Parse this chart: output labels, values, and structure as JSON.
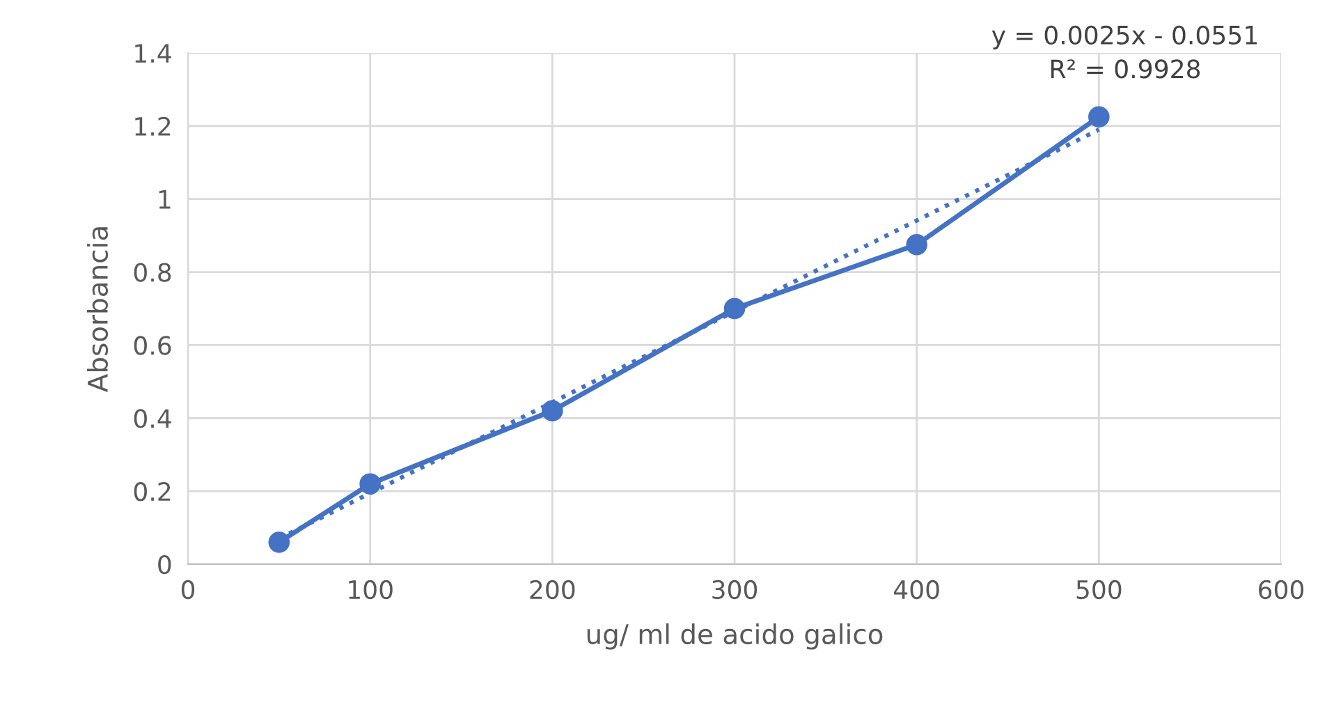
{
  "chart_data": {
    "type": "line",
    "xlabel": "ug/ ml de acido galico",
    "ylabel": "Absorbancia",
    "x": [
      50,
      100,
      200,
      300,
      400,
      500
    ],
    "series": [
      {
        "color": "#4472c4",
        "values": [
          0.06,
          0.22,
          0.42,
          0.7,
          0.875,
          1.225
        ],
        "marker": "circle",
        "line_style": "solid"
      },
      {
        "color": "#4472c4",
        "x": [
          50,
          500
        ],
        "values": [
          0.07,
          1.19
        ],
        "marker": "none",
        "line_style": "dotted"
      }
    ],
    "xlim": [
      0,
      600
    ],
    "xticks": [
      0,
      100,
      200,
      300,
      400,
      500,
      600
    ],
    "ylim": [
      0,
      1.4
    ],
    "yticks": [
      0,
      {
        "value": 0.2,
        "label": "0.2"
      },
      {
        "value": 0.4,
        "label": "0.4"
      },
      {
        "value": 0.6,
        "label": "0.6"
      },
      {
        "value": 0.8,
        "label": "0.8"
      },
      1,
      {
        "value": 1.2,
        "label": "1.2"
      },
      {
        "value": 1.4,
        "label": "1.4"
      }
    ],
    "grid": true,
    "legend": false,
    "annotations": [
      "y = 0.0025x - 0.0551\nR² = 0.9928"
    ]
  }
}
